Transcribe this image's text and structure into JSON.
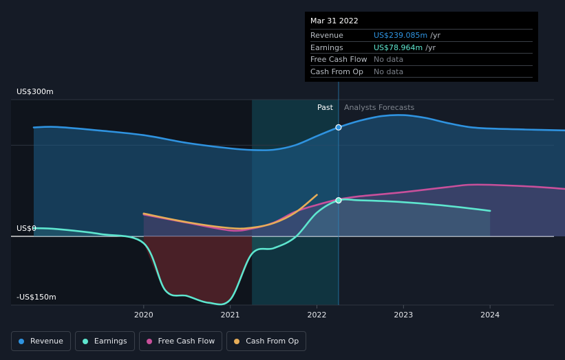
{
  "chart_data": {
    "type": "line",
    "x_axis": {
      "range": [
        2018.73,
        2025.0
      ],
      "ticks": [
        "2020",
        "2021",
        "2022",
        "2023",
        "2024"
      ],
      "tick_values": [
        2020,
        2021,
        2022,
        2023,
        2024
      ]
    },
    "y_axis": {
      "range": [
        -150,
        300
      ],
      "labels": [
        {
          "value": 300,
          "text": "US$300m"
        },
        {
          "value": 0,
          "text": "US$0"
        },
        {
          "value": -150,
          "text": "-US$150m"
        }
      ]
    },
    "gridlines_at": [
      300,
      200,
      0
    ],
    "past_end": 2022.25,
    "highlight_start": 2021.25,
    "past_label": "Past",
    "forecast_label": "Analysts Forecasts",
    "series": [
      {
        "name": "Revenue",
        "color": "#2f93e0",
        "fill": true,
        "points": [
          [
            2018.73,
            239
          ],
          [
            2019.0,
            240
          ],
          [
            2019.5,
            232
          ],
          [
            2020.0,
            222
          ],
          [
            2020.5,
            205
          ],
          [
            2021.0,
            193
          ],
          [
            2021.25,
            189.5
          ],
          [
            2021.5,
            190
          ],
          [
            2021.75,
            200
          ],
          [
            2022.0,
            220
          ],
          [
            2022.25,
            239.1
          ],
          [
            2022.5,
            254
          ],
          [
            2022.75,
            264
          ],
          [
            2023.0,
            266
          ],
          [
            2023.25,
            260
          ],
          [
            2023.5,
            249
          ],
          [
            2023.75,
            240
          ],
          [
            2024.0,
            236.5
          ],
          [
            2024.5,
            234
          ],
          [
            2025.0,
            232
          ]
        ]
      },
      {
        "name": "Earnings",
        "color": "#5ee6cf",
        "fill": true,
        "points": [
          [
            2018.73,
            18
          ],
          [
            2019.0,
            16
          ],
          [
            2019.5,
            5
          ],
          [
            2020.0,
            -15
          ],
          [
            2020.25,
            -118
          ],
          [
            2020.5,
            -130
          ],
          [
            2020.75,
            -145
          ],
          [
            2021.0,
            -138
          ],
          [
            2021.25,
            -38
          ],
          [
            2021.5,
            -26
          ],
          [
            2021.75,
            -2
          ],
          [
            2022.0,
            52
          ],
          [
            2022.25,
            79
          ],
          [
            2022.5,
            79
          ],
          [
            2023.0,
            75
          ],
          [
            2023.5,
            67
          ],
          [
            2024.0,
            56
          ]
        ]
      },
      {
        "name": "Free Cash Flow",
        "color": "#c9509b",
        "fill": true,
        "points": [
          [
            2020.0,
            48
          ],
          [
            2020.5,
            30
          ],
          [
            2021.0,
            13
          ],
          [
            2021.25,
            17
          ],
          [
            2021.5,
            30
          ],
          [
            2021.75,
            54
          ],
          [
            2022.0,
            69
          ],
          [
            2022.25,
            81
          ],
          [
            2022.5,
            88
          ],
          [
            2023.0,
            97
          ],
          [
            2023.5,
            108
          ],
          [
            2023.75,
            113
          ],
          [
            2024.0,
            113
          ],
          [
            2024.5,
            109
          ],
          [
            2025.0,
            102
          ]
        ]
      },
      {
        "name": "Cash From Op",
        "color": "#e7ad58",
        "fill": false,
        "points": [
          [
            2020.0,
            50
          ],
          [
            2020.5,
            31
          ],
          [
            2021.0,
            18
          ],
          [
            2021.25,
            19
          ],
          [
            2021.5,
            29
          ],
          [
            2021.75,
            52
          ],
          [
            2022.0,
            91
          ]
        ]
      }
    ],
    "tooltip": {
      "date": "Mar 31 2022",
      "rows": [
        {
          "label": "Revenue",
          "value": "US$239.085m",
          "unit": "/yr",
          "color": "#2f93e0"
        },
        {
          "label": "Earnings",
          "value": "US$78.964m",
          "unit": "/yr",
          "color": "#5ee6cf"
        },
        {
          "label": "Free Cash Flow",
          "value": "No data",
          "unit": "",
          "color": "#7b8089"
        },
        {
          "label": "Cash From Op",
          "value": "No data",
          "unit": "",
          "color": "#7b8089"
        }
      ]
    },
    "legend": [
      {
        "label": "Revenue",
        "color": "#2f93e0"
      },
      {
        "label": "Earnings",
        "color": "#5ee6cf"
      },
      {
        "label": "Free Cash Flow",
        "color": "#c9509b"
      },
      {
        "label": "Cash From Op",
        "color": "#e7ad58"
      }
    ]
  }
}
